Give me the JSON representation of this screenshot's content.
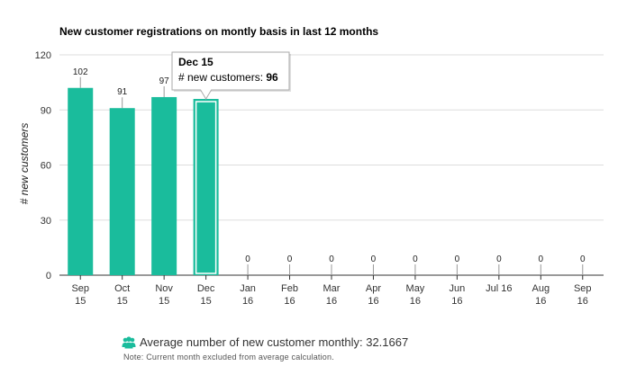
{
  "chart_data": {
    "type": "bar",
    "title": "New customer registrations on montly basis in last 12 months",
    "ylabel": "# new customers",
    "xlabel": "",
    "ylim": [
      0,
      120
    ],
    "yticks": [
      0,
      30,
      60,
      90,
      120
    ],
    "grid": true,
    "categories": [
      [
        "Sep",
        "15"
      ],
      [
        "Oct",
        "15"
      ],
      [
        "Nov",
        "15"
      ],
      [
        "Dec",
        "15"
      ],
      [
        "Jan",
        "16"
      ],
      [
        "Feb",
        "16"
      ],
      [
        "Mar",
        "16"
      ],
      [
        "Apr",
        "16"
      ],
      [
        "May",
        "16"
      ],
      [
        "Jun",
        "16"
      ],
      [
        "Jul 16",
        ""
      ],
      [
        "Aug",
        "16"
      ],
      [
        "Sep",
        "16"
      ]
    ],
    "values": [
      102,
      91,
      97,
      96,
      0,
      0,
      0,
      0,
      0,
      0,
      0,
      0,
      0
    ],
    "bar_color": "#1abc9c",
    "tooltip": {
      "category_index": 3,
      "title": "Dec 15",
      "label": "# new customers: ",
      "value": "96"
    }
  },
  "summary": {
    "icon": "users-icon",
    "icon_color": "#1abc9c",
    "text": "Average number of new customer monthly: 32.1667",
    "note": "Note: Current month excluded from average calculation."
  }
}
